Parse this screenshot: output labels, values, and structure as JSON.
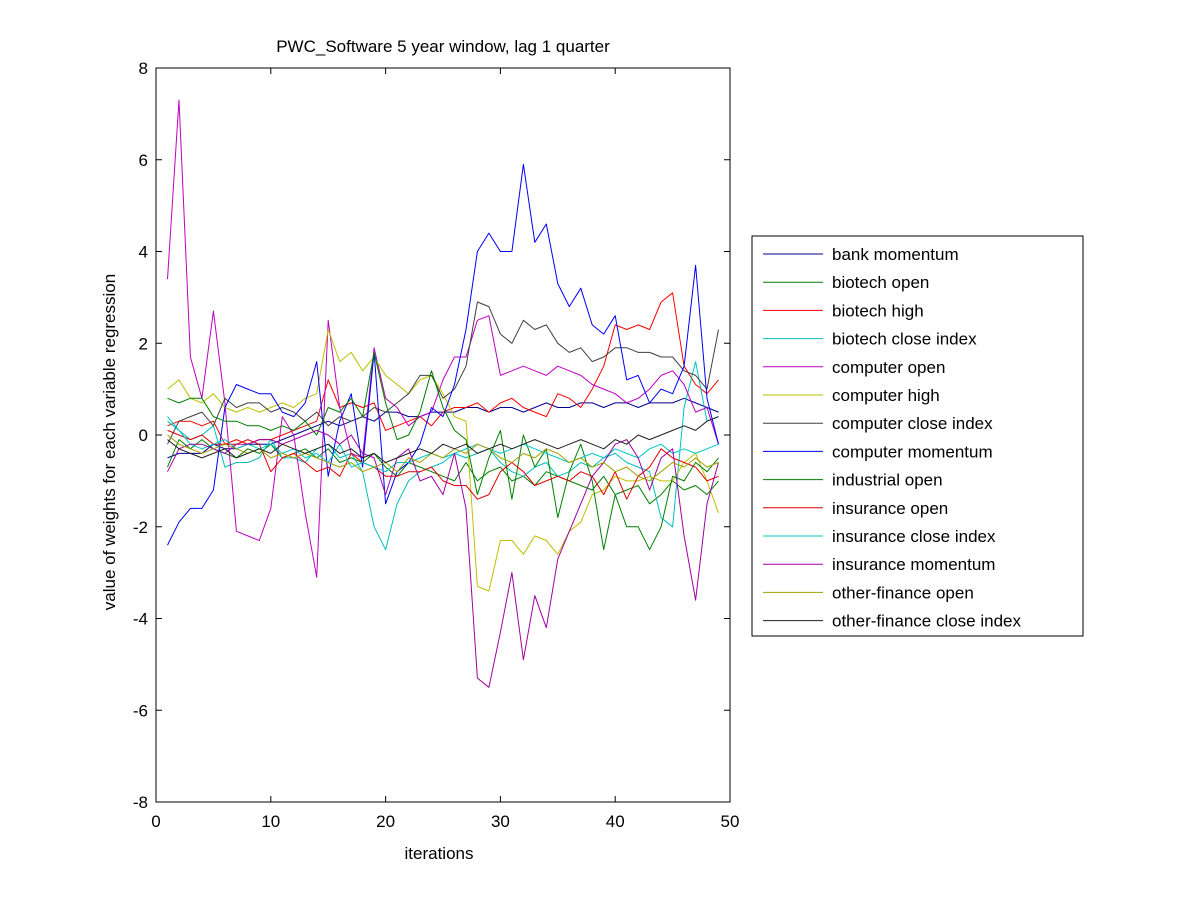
{
  "chart_data": {
    "type": "line",
    "title": "PWC_Software 5 year window, lag 1 quarter",
    "xlabel": "iterations",
    "ylabel": "value of weights for each variable regression",
    "xlim": [
      0,
      50
    ],
    "ylim": [
      -8,
      8
    ],
    "xticks": [
      "0",
      "10",
      "20",
      "30",
      "40",
      "50"
    ],
    "yticks": [
      "8",
      "6",
      "4",
      "2",
      "0",
      "-2",
      "-4",
      "-6",
      "-8"
    ],
    "legend_position": "outside-right",
    "grid": false,
    "x": [
      1,
      2,
      3,
      4,
      5,
      6,
      7,
      8,
      9,
      10,
      11,
      12,
      13,
      14,
      15,
      16,
      17,
      18,
      19,
      20,
      21,
      22,
      23,
      24,
      25,
      26,
      27,
      28,
      29,
      30,
      31,
      32,
      33,
      34,
      35,
      36,
      37,
      38,
      39,
      40,
      41,
      42,
      43,
      44,
      45,
      46,
      47,
      48,
      49
    ],
    "series": [
      {
        "name": "bank momentum",
        "color": "#00008f",
        "values": [
          -0.5,
          -0.4,
          -0.4,
          -0.4,
          -0.2,
          -0.3,
          -0.3,
          -0.2,
          -0.2,
          -0.2,
          -0.1,
          0.0,
          0.1,
          0.2,
          0.3,
          0.2,
          0.3,
          0.4,
          0.3,
          0.5,
          0.5,
          0.4,
          0.4,
          0.5,
          0.5,
          0.5,
          0.6,
          0.6,
          0.5,
          0.6,
          0.6,
          0.5,
          0.6,
          0.7,
          0.6,
          0.6,
          0.7,
          0.7,
          0.6,
          0.7,
          0.7,
          0.6,
          0.7,
          0.7,
          0.7,
          0.8,
          0.7,
          0.6,
          0.5
        ]
      },
      {
        "name": "biotech open",
        "color": "#008000",
        "values": [
          -0.7,
          -0.1,
          -0.3,
          -0.1,
          -0.3,
          -0.4,
          -0.5,
          -0.3,
          -0.4,
          -0.2,
          -0.5,
          -0.4,
          -0.3,
          -0.5,
          -0.3,
          -0.6,
          -0.5,
          -0.6,
          -0.4,
          -0.7,
          -0.9,
          -0.6,
          -0.7,
          -0.8,
          -0.9,
          -1.0,
          -0.6,
          -1.0,
          -0.8,
          -0.7,
          -1.0,
          -0.9,
          -1.1,
          -0.8,
          -0.9,
          -1.0,
          -1.1,
          -1.2,
          -0.9,
          -1.3,
          -1.2,
          -1.1,
          -1.5,
          -1.3,
          -1.0,
          -1.2,
          -1.1,
          -1.3,
          -1.0
        ]
      },
      {
        "name": "biotech high",
        "color": "#ff0000",
        "values": [
          0.2,
          0.3,
          0.3,
          0.2,
          0.3,
          -0.2,
          -0.1,
          -0.2,
          -0.1,
          -0.1,
          0.0,
          0.1,
          0.2,
          0.3,
          1.2,
          0.6,
          0.7,
          0.6,
          0.7,
          0.1,
          0.2,
          0.3,
          0.4,
          0.2,
          0.5,
          0.6,
          0.6,
          0.7,
          0.5,
          0.7,
          0.8,
          0.6,
          0.5,
          0.4,
          0.9,
          0.8,
          0.6,
          1.0,
          1.5,
          2.4,
          2.3,
          2.4,
          2.3,
          2.9,
          3.1,
          1.5,
          1.1,
          0.9,
          1.2
        ]
      },
      {
        "name": "biotech close index",
        "color": "#00bfbf",
        "values": [
          0.3,
          0.1,
          -0.1,
          0.0,
          0.2,
          -0.7,
          -0.6,
          -0.6,
          -0.5,
          -0.1,
          -0.5,
          -0.5,
          -0.6,
          -0.3,
          -0.2,
          -0.5,
          -0.4,
          -0.8,
          -2.0,
          -2.5,
          -1.5,
          -1.0,
          -0.8,
          -0.7,
          -0.6,
          -0.4,
          -0.5,
          -0.4,
          -0.3,
          -0.6,
          -0.8,
          -0.9,
          -0.7,
          -0.6,
          -0.9,
          -0.8,
          -0.6,
          -0.7,
          -0.5,
          -0.4,
          -0.6,
          -0.7,
          -0.8,
          -1.8,
          -2.0,
          0.6,
          1.6,
          0.3,
          0.4
        ]
      },
      {
        "name": "computer open",
        "color": "#bf00bf",
        "values": [
          3.4,
          7.3,
          1.7,
          0.8,
          2.7,
          0.7,
          -2.1,
          -2.2,
          -2.3,
          -1.6,
          0.4,
          0.0,
          -1.7,
          -3.1,
          2.5,
          0.6,
          -0.4,
          -0.5,
          1.9,
          0.8,
          0.6,
          0.2,
          0.4,
          0.5,
          1.2,
          1.7,
          1.7,
          2.5,
          2.6,
          1.3,
          1.4,
          1.5,
          1.4,
          1.3,
          1.5,
          1.4,
          1.3,
          1.1,
          1.0,
          0.9,
          0.7,
          0.8,
          1.0,
          1.3,
          1.4,
          1.1,
          0.5,
          0.6,
          -0.2
        ]
      },
      {
        "name": "computer high",
        "color": "#bfbf00",
        "values": [
          1.0,
          1.2,
          0.8,
          0.7,
          0.9,
          0.6,
          0.5,
          0.6,
          0.5,
          0.6,
          0.7,
          0.6,
          0.8,
          0.9,
          2.3,
          1.6,
          1.8,
          1.4,
          1.7,
          1.3,
          1.1,
          0.9,
          1.2,
          1.3,
          0.9,
          0.4,
          0.3,
          -3.3,
          -3.4,
          -2.3,
          -2.3,
          -2.6,
          -2.2,
          -2.3,
          -2.6,
          -2.1,
          -1.9,
          -1.3,
          -1.2,
          -0.9,
          -1.0,
          -1.0,
          -0.9,
          -1.0,
          -1.0,
          -0.6,
          -0.4,
          -1.0,
          -1.7
        ]
      },
      {
        "name": "computer close index",
        "color": "#404040",
        "values": [
          -0.2,
          0.3,
          0.4,
          0.5,
          0.2,
          0.8,
          0.6,
          0.7,
          0.7,
          0.5,
          0.6,
          0.5,
          0.3,
          0.5,
          0.2,
          0.4,
          0.3,
          0.4,
          0.6,
          0.5,
          0.7,
          0.9,
          1.3,
          1.3,
          0.8,
          1.0,
          1.5,
          2.9,
          2.8,
          2.2,
          2.0,
          2.5,
          2.3,
          2.4,
          2.0,
          1.8,
          1.9,
          1.6,
          1.7,
          1.9,
          1.9,
          1.8,
          1.8,
          1.7,
          1.7,
          1.4,
          1.3,
          1.0,
          2.3
        ]
      },
      {
        "name": "computer momentum",
        "color": "#0000ff",
        "values": [
          -2.4,
          -1.9,
          -1.6,
          -1.6,
          -1.2,
          0.6,
          1.1,
          1.0,
          0.9,
          0.9,
          0.5,
          0.4,
          0.7,
          1.6,
          -0.9,
          0.3,
          0.9,
          -0.7,
          1.8,
          -1.5,
          -0.8,
          -0.6,
          -0.2,
          0.6,
          0.4,
          1.1,
          2.3,
          4.0,
          4.4,
          4.0,
          4.0,
          5.9,
          4.2,
          4.6,
          3.3,
          2.8,
          3.2,
          2.4,
          2.2,
          2.6,
          1.2,
          1.3,
          0.7,
          1.0,
          0.9,
          1.5,
          3.7,
          0.8,
          -0.2
        ]
      },
      {
        "name": "industrial open",
        "color": "#007f00",
        "values": [
          0.8,
          0.7,
          0.8,
          0.8,
          0.4,
          0.3,
          0.3,
          0.2,
          0.2,
          0.1,
          0.2,
          0.1,
          0.3,
          0.0,
          0.6,
          0.5,
          0.8,
          0.4,
          1.8,
          0.7,
          -0.1,
          0.0,
          0.5,
          1.4,
          0.6,
          0.1,
          -0.1,
          -1.3,
          -0.5,
          0.1,
          -1.4,
          0.0,
          -0.7,
          -0.3,
          -1.8,
          -0.8,
          -0.2,
          -1.0,
          -2.5,
          -1.3,
          -2.0,
          -2.0,
          -2.5,
          -2.0,
          -0.9,
          -1.0,
          -0.6,
          -0.8,
          -0.5
        ]
      },
      {
        "name": "insurance open",
        "color": "#e00000",
        "values": [
          0.1,
          0.0,
          -0.1,
          0.0,
          -0.2,
          -0.2,
          -0.2,
          -0.1,
          -0.2,
          -0.8,
          -0.5,
          -0.4,
          -0.6,
          -0.8,
          -0.7,
          -0.9,
          -0.4,
          -0.6,
          -0.7,
          -0.9,
          -0.9,
          -0.8,
          -0.8,
          -0.7,
          -1.0,
          -1.1,
          -1.1,
          -1.4,
          -1.3,
          -0.8,
          -0.6,
          -0.8,
          -1.1,
          -1.0,
          -0.9,
          -1.0,
          -0.8,
          -0.9,
          -1.3,
          -0.8,
          -1.4,
          -0.9,
          -0.7,
          -0.3,
          -0.5,
          -0.6,
          -0.7,
          -1.0,
          -0.9
        ]
      },
      {
        "name": "insurance close index",
        "color": "#00c8c8",
        "values": [
          0.4,
          0.1,
          -0.2,
          -0.3,
          -0.2,
          -0.1,
          -0.3,
          -0.2,
          -0.3,
          -0.2,
          -0.4,
          -0.3,
          -0.5,
          -0.4,
          -0.6,
          -0.2,
          -0.7,
          -0.6,
          -0.7,
          -0.8,
          -0.6,
          -0.6,
          -0.5,
          -0.4,
          -0.5,
          -0.4,
          -0.3,
          -0.2,
          -0.3,
          -0.4,
          -0.3,
          -0.2,
          -0.3,
          -0.4,
          -0.5,
          -0.6,
          -0.5,
          -0.4,
          -0.5,
          -0.3,
          -0.4,
          -0.5,
          -0.3,
          -0.2,
          -0.4,
          -0.3,
          -0.4,
          -0.3,
          -0.2
        ]
      },
      {
        "name": "insurance momentum",
        "color": "#a000a0",
        "values": [
          -0.8,
          -0.3,
          -0.2,
          -0.2,
          -0.3,
          -0.4,
          -0.2,
          -0.2,
          -0.1,
          -0.1,
          -0.2,
          -0.1,
          0.0,
          0.1,
          0.0,
          -0.2,
          0.0,
          -0.4,
          -0.5,
          -1.3,
          -0.5,
          -0.3,
          -1.0,
          -0.9,
          -1.3,
          -0.4,
          -1.6,
          -5.3,
          -5.5,
          -4.3,
          -3.0,
          -4.9,
          -3.5,
          -4.2,
          -2.7,
          -2.1,
          -1.5,
          -0.9,
          -0.6,
          -0.2,
          -0.1,
          -0.5,
          -1.2,
          -0.5,
          -0.3,
          -2.2,
          -3.6,
          -1.5,
          -0.6
        ]
      },
      {
        "name": "other-finance open",
        "color": "#a0a000",
        "values": [
          0.0,
          -0.2,
          -0.3,
          -0.4,
          -0.3,
          -0.2,
          -0.3,
          -0.4,
          -0.3,
          -0.5,
          -0.4,
          -0.5,
          -0.4,
          -0.5,
          -0.6,
          -0.7,
          -0.6,
          -0.8,
          -0.7,
          -0.6,
          -0.8,
          -0.5,
          -0.6,
          -0.4,
          -0.5,
          -0.3,
          -0.4,
          -0.2,
          -0.3,
          -0.5,
          -0.6,
          -0.4,
          -0.5,
          -0.3,
          -0.4,
          -0.6,
          -0.5,
          -0.7,
          -0.6,
          -0.8,
          -0.7,
          -0.9,
          -1.0,
          -0.8,
          -0.6,
          -0.7,
          -0.5,
          -0.7,
          -0.6
        ]
      },
      {
        "name": "other-finance close index",
        "color": "#202020",
        "values": [
          -0.1,
          -0.3,
          -0.4,
          -0.5,
          -0.4,
          -0.3,
          -0.5,
          -0.4,
          -0.3,
          -0.4,
          -0.2,
          -0.3,
          -0.4,
          -0.3,
          -0.2,
          -0.4,
          -0.3,
          -0.5,
          -0.4,
          -0.6,
          -0.5,
          -0.4,
          -0.3,
          -0.4,
          -0.2,
          -0.3,
          -0.2,
          -0.4,
          -0.3,
          -0.2,
          -0.3,
          -0.2,
          -0.1,
          -0.2,
          -0.3,
          -0.2,
          -0.1,
          -0.2,
          -0.3,
          -0.1,
          -0.2,
          0.0,
          -0.1,
          0.0,
          0.1,
          0.2,
          0.1,
          0.3,
          0.4
        ]
      }
    ]
  }
}
